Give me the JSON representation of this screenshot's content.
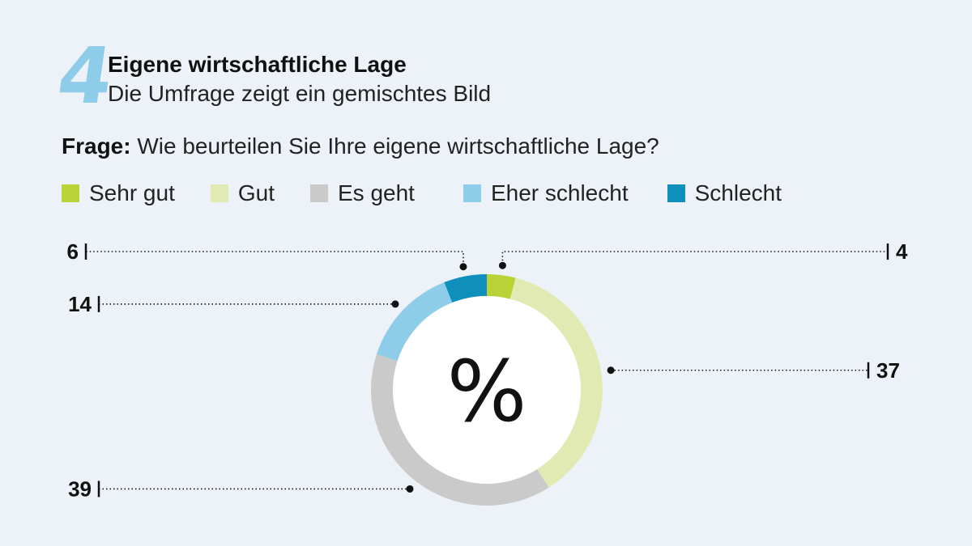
{
  "header": {
    "number": "4",
    "title": "Eigene wirtschaftliche Lage",
    "subtitle": "Die Umfrage zeigt ein gemischtes Bild"
  },
  "question": {
    "label": "Frage:",
    "text": " Wie beurteilen Sie Ihre eigene wirtschaftliche Lage?"
  },
  "legend": [
    {
      "label": "Sehr gut",
      "color": "#b9d235"
    },
    {
      "label": "Gut",
      "color": "#e1eab3"
    },
    {
      "label": "Es geht",
      "color": "#cacaca"
    },
    {
      "label": "Eher schlecht",
      "color": "#8ecdea"
    },
    {
      "label": "Schlecht",
      "color": "#0f8fbb"
    }
  ],
  "chart_data": {
    "type": "pie",
    "donut": true,
    "center_label": "%",
    "categories": [
      "Sehr gut",
      "Gut",
      "Es geht",
      "Eher schlecht",
      "Schlecht"
    ],
    "values": [
      4,
      37,
      39,
      14,
      6
    ],
    "colors": [
      "#b9d235",
      "#e1eab3",
      "#cacaca",
      "#8ecdea",
      "#0f8fbb"
    ],
    "legend_position": "top"
  }
}
